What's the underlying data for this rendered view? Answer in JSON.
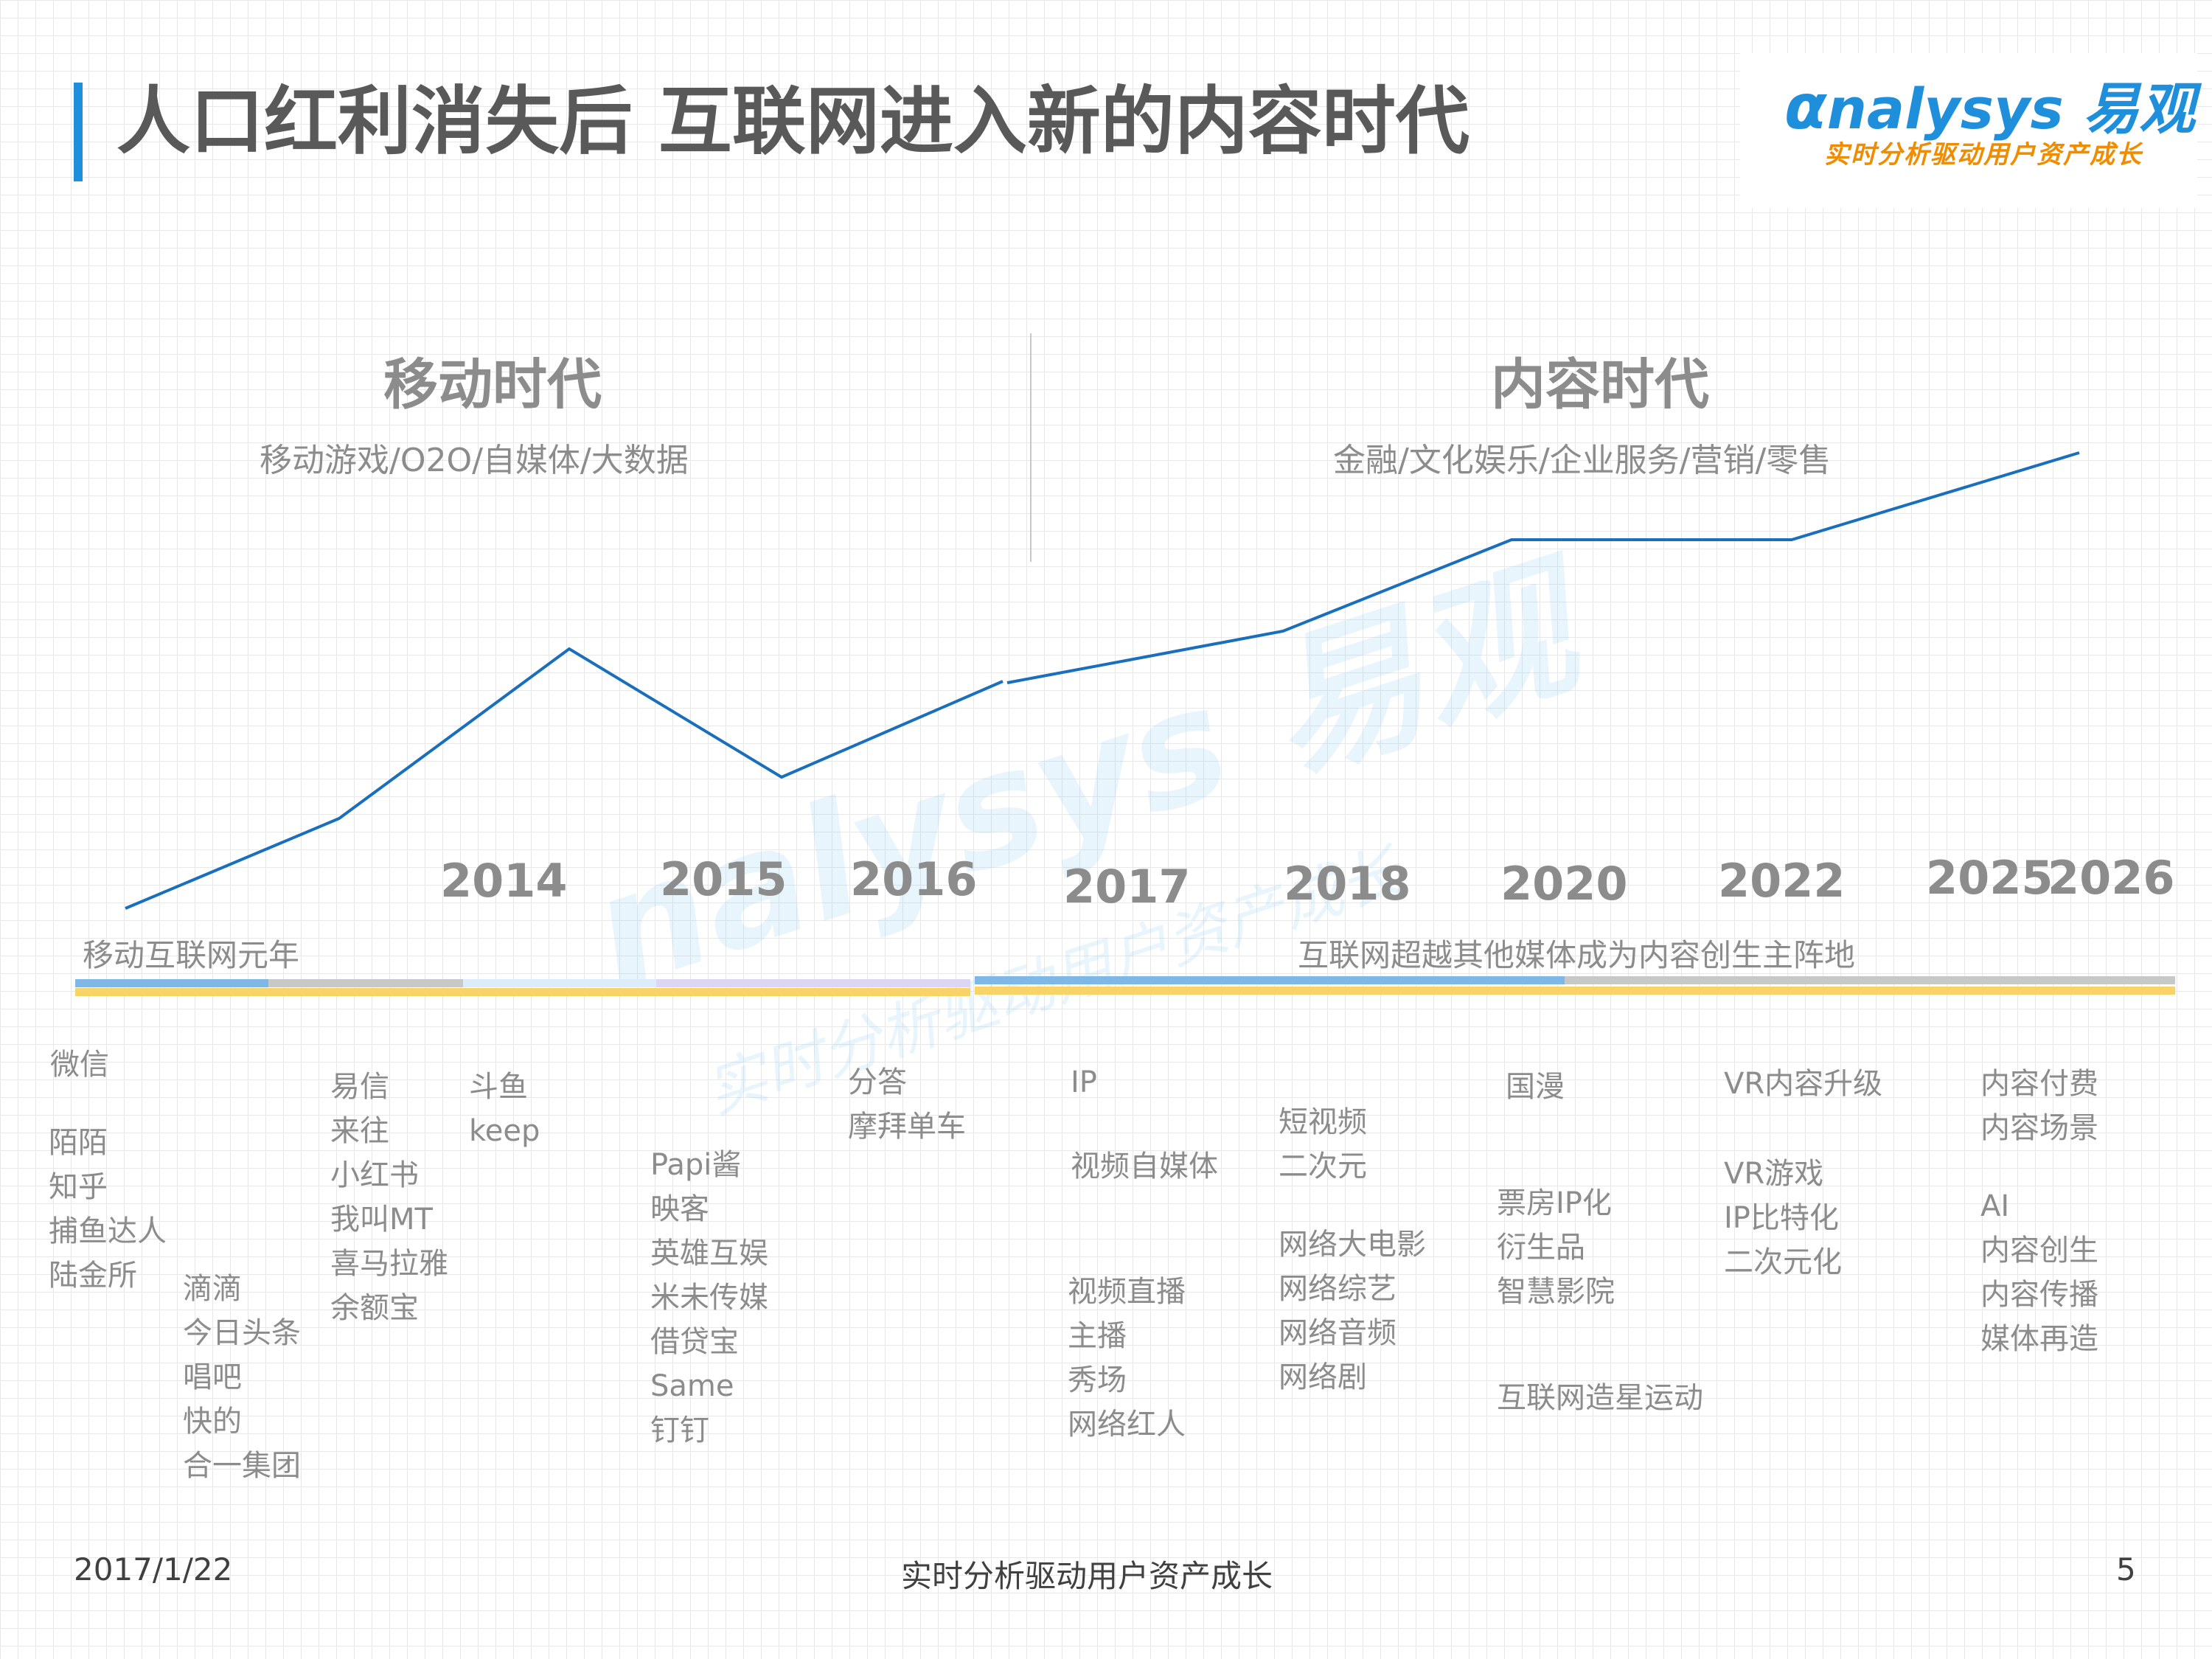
{
  "header": {
    "title": "人口红利消失后 互联网进入新的内容时代",
    "logo_text": "nalysys 易观",
    "logo_slogan": "实时分析驱动用户资产成长"
  },
  "watermark": {
    "text": "nalysys 易观",
    "slogan": "实时分析驱动用户资产成长"
  },
  "eras": [
    {
      "title": "移动时代",
      "subtitle": "移动游戏/O2O/自媒体/大数据"
    },
    {
      "title": "内容时代",
      "subtitle": "金融/文化娱乐/企业服务/营销/零售"
    }
  ],
  "years": [
    "2014",
    "2015",
    "2016",
    "2017",
    "2018",
    "2020",
    "2022",
    "2025",
    "2026"
  ],
  "milestones": [
    "移动互联网元年",
    "互联网超越其他媒体成为内容创生主阵地"
  ],
  "colors": {
    "line": "#1a6fbd",
    "bar_blue": "#7fb8e6",
    "bar_gray": "#c8c8c8",
    "bar_yellow": "#f8d368",
    "accent": "#1f8fdc"
  },
  "items": {
    "g1": [
      "微信"
    ],
    "g2": [
      "陌陌",
      "知乎",
      "捕鱼达人",
      "陆金所"
    ],
    "g3": [
      "滴滴",
      "今日头条",
      "唱吧",
      "快的",
      "合一集团"
    ],
    "g4": [
      "易信",
      "来往",
      "小红书",
      "我叫MT",
      "喜马拉雅",
      "余额宝"
    ],
    "g5": [
      "斗鱼",
      "keep"
    ],
    "g6": [
      "Papi酱",
      "映客",
      "英雄互娱",
      "米未传媒",
      "借贷宝",
      "Same",
      "钉钉"
    ],
    "g7": [
      "分答",
      "摩拜单车"
    ],
    "g8": [
      "IP"
    ],
    "g9": [
      "视频自媒体"
    ],
    "g10": [
      "视频直播",
      "主播",
      "秀场",
      "网络红人"
    ],
    "g11": [
      "短视频",
      "二次元"
    ],
    "g12": [
      "网络大电影",
      "网络综艺",
      "网络音频",
      "网络剧"
    ],
    "g13": [
      "国漫"
    ],
    "g14": [
      "票房IP化",
      "衍生品",
      "智慧影院"
    ],
    "g15": [
      "互联网造星运动"
    ],
    "g16": [
      "VR内容升级"
    ],
    "g17": [
      "VR游戏",
      "IP比特化",
      "二次元化"
    ],
    "g18": [
      "内容付费",
      "内容场景"
    ],
    "g19": [
      "AI",
      "内容创生",
      "内容传播",
      "媒体再造"
    ]
  },
  "footer": {
    "date": "2017/1/22",
    "slogan": "实时分析驱动用户资产成长",
    "page": "5"
  }
}
